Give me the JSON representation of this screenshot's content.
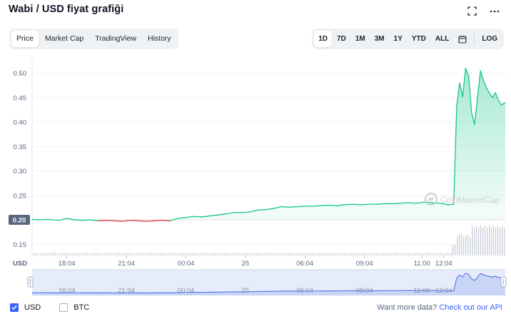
{
  "header": {
    "title": "Wabi / USD fiyat grafiği"
  },
  "icons": {
    "fullscreen": "fullscreen-icon",
    "more": "more-icon",
    "calendar": "calendar-icon"
  },
  "tabs": [
    {
      "label": "Price",
      "active": true
    },
    {
      "label": "Market Cap",
      "active": false
    },
    {
      "label": "TradingView",
      "active": false
    },
    {
      "label": "History",
      "active": false
    }
  ],
  "ranges": [
    {
      "label": "1D",
      "active": true
    },
    {
      "label": "7D",
      "active": false
    },
    {
      "label": "1M",
      "active": false
    },
    {
      "label": "3M",
      "active": false
    },
    {
      "label": "1Y",
      "active": false
    },
    {
      "label": "YTD",
      "active": false
    },
    {
      "label": "ALL",
      "active": false
    }
  ],
  "log_label": "LOG",
  "watermark": "CoinMarketCap",
  "footer": {
    "usd_label": "USD",
    "btc_label": "BTC",
    "api_prefix": "Want more data?",
    "api_link": "Check out our API"
  },
  "colors": {
    "up": "#16c784",
    "down": "#ea3943",
    "accent": "#3861fb",
    "nav_line": "#5b7de9"
  },
  "chart_data": {
    "type": "line",
    "currency_label": "USD",
    "y_ticks": [
      0.15,
      0.25,
      0.3,
      0.35,
      0.4,
      0.45,
      0.5
    ],
    "ylim": [
      0.13,
      0.53
    ],
    "baseline": 0.2,
    "baseline_label": "0.20",
    "x_ticks": [
      "18:04",
      "21:04",
      "00:04",
      "25",
      "06:04",
      "09:04",
      "11:00",
      "12:04"
    ],
    "x_tick_pos": [
      1.0,
      4.0,
      7.0,
      10.0,
      13.0,
      16.0,
      18.9,
      20.0
    ],
    "xlim": [
      -0.75,
      23.1
    ],
    "price": {
      "x": [
        -0.75,
        -0.4,
        0.0,
        0.6,
        1.0,
        1.4,
        1.8,
        2.2,
        2.6,
        3.0,
        3.4,
        3.8,
        4.2,
        4.6,
        5.0,
        5.4,
        5.8,
        6.2,
        6.6,
        7.0,
        7.4,
        7.8,
        8.2,
        8.6,
        9.0,
        9.4,
        9.8,
        10.2,
        10.6,
        11.0,
        11.4,
        11.8,
        12.2,
        12.6,
        13.0,
        13.4,
        13.8,
        14.2,
        14.6,
        15.0,
        15.4,
        15.8,
        16.2,
        16.6,
        17.0,
        17.4,
        17.8,
        18.2,
        18.6,
        19.0,
        19.4,
        19.8,
        20.2,
        20.5,
        20.65,
        20.8,
        20.95,
        21.1,
        21.25,
        21.4,
        21.55,
        21.7,
        21.85,
        22.0,
        22.15,
        22.3,
        22.45,
        22.6,
        22.75,
        22.9,
        23.1
      ],
      "y": [
        0.201,
        0.2,
        0.201,
        0.199,
        0.203,
        0.2,
        0.199,
        0.2,
        0.198,
        0.199,
        0.198,
        0.197,
        0.199,
        0.198,
        0.197,
        0.198,
        0.199,
        0.198,
        0.203,
        0.205,
        0.207,
        0.206,
        0.208,
        0.21,
        0.212,
        0.215,
        0.215,
        0.216,
        0.22,
        0.221,
        0.223,
        0.227,
        0.226,
        0.227,
        0.228,
        0.228,
        0.229,
        0.23,
        0.229,
        0.231,
        0.232,
        0.231,
        0.232,
        0.232,
        0.233,
        0.233,
        0.234,
        0.235,
        0.234,
        0.236,
        0.235,
        0.234,
        0.231,
        0.232,
        0.432,
        0.48,
        0.452,
        0.51,
        0.495,
        0.42,
        0.395,
        0.45,
        0.505,
        0.485,
        0.47,
        0.46,
        0.45,
        0.46,
        0.445,
        0.435,
        0.44
      ]
    },
    "volume_note": "volume histogram at bottom of main plot",
    "navigator": {
      "x_ticks": [
        "18:04",
        "21:04",
        "00:04",
        "25",
        "06:04",
        "09:04",
        "11:00",
        "12:04"
      ]
    }
  }
}
